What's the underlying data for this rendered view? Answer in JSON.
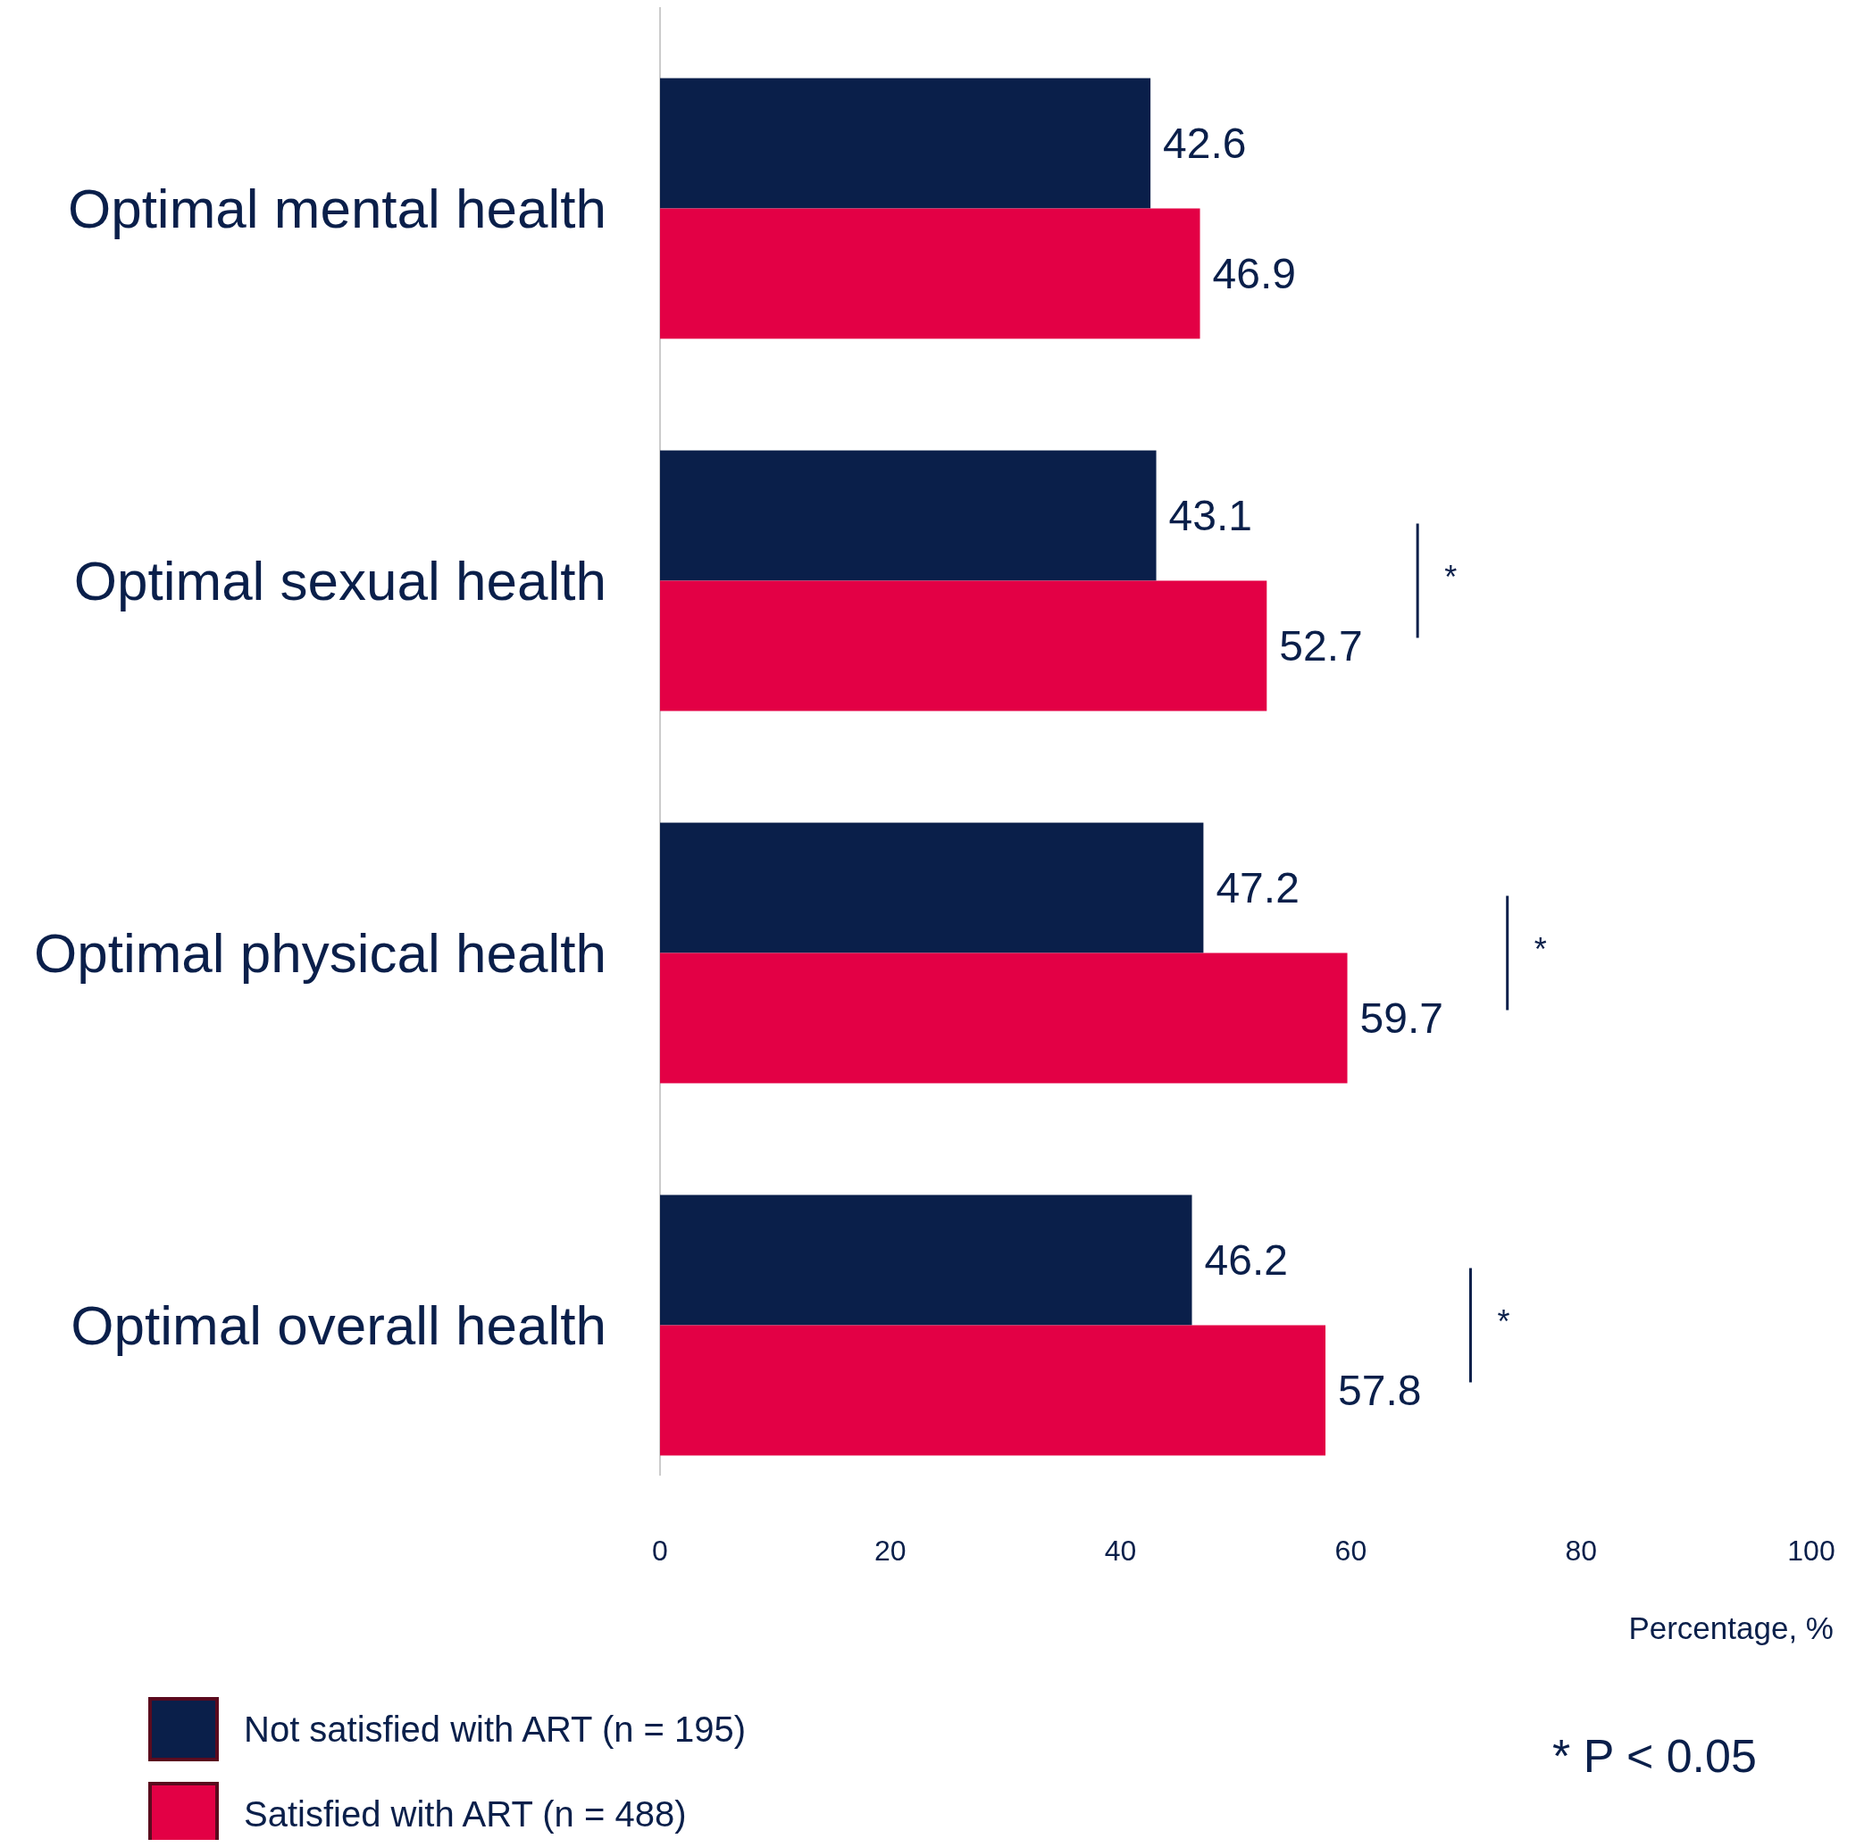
{
  "chart_data": {
    "type": "bar",
    "orientation": "horizontal",
    "xlabel": "Percentage, %",
    "categories": [
      "Optimal mental health",
      "Optimal sexual health",
      "Optimal physical health",
      "Optimal overall health"
    ],
    "series": [
      {
        "name": "Not satisfied with ART (n = 195)",
        "color": "#0a1f4a",
        "values": [
          42.6,
          43.1,
          47.2,
          46.2
        ]
      },
      {
        "name": "Satisfied with ART (n = 488)",
        "color": "#e30045",
        "values": [
          46.9,
          52.7,
          59.7,
          57.8
        ]
      }
    ],
    "xlim": [
      0,
      100
    ],
    "xticks": [
      0,
      20,
      40,
      60,
      80,
      100
    ],
    "data_labels": true,
    "grid": false,
    "legend": "bottom left",
    "annotations": [
      "*",
      "*",
      "*",
      "* P < 0.05"
    ]
  }
}
